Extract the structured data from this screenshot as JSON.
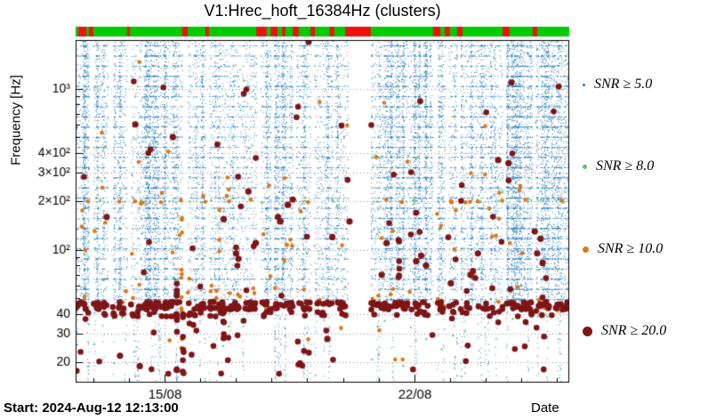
{
  "chart_data": {
    "type": "scatter",
    "title": "V1:Hrec_hoft_16384Hz (clusters)",
    "xlabel": "Date",
    "ylabel": "Frequency [Hz]",
    "start_label": "Start: 2024-Aug-12 12:13:00",
    "x_axis": {
      "start": "2024-Aug-12 12:13:00",
      "span_days": 13.83,
      "minor_first_t": 0.0355,
      "minor_step_t": 0.0723,
      "major_ticks": [
        {
          "label": "15/08",
          "t": 0.1801
        },
        {
          "label": "22/08",
          "t": 0.6862
        }
      ]
    },
    "y_axis": {
      "scale": "log",
      "min": 15,
      "max": 2000,
      "ticks": [
        {
          "f": 20,
          "label": "20"
        },
        {
          "f": 30,
          "label": "30"
        },
        {
          "f": 40,
          "label": "40"
        },
        {
          "f": 100,
          "label": "10²"
        },
        {
          "f": 200,
          "label": "2×10²"
        },
        {
          "f": 300,
          "label": "3×10²"
        },
        {
          "f": 400,
          "label": "4×10²"
        },
        {
          "f": 1000,
          "label": "10³"
        }
      ]
    },
    "legend": [
      {
        "label": "SNR ≥ 5.0",
        "color": "#2d7fb5",
        "marker_px": 3
      },
      {
        "label": "SNR ≥ 8.0",
        "color": "#5fbf61",
        "marker_px": 5
      },
      {
        "label": "SNR ≥ 10.0",
        "color": "#dd7716",
        "marker_px": 7
      },
      {
        "label": "SNR ≥ 20.0",
        "color": "#7e1517",
        "marker_px": 11
      }
    ],
    "status_bar": {
      "ok_color": "#00cc00",
      "bad_color": "#ee1111",
      "red_segments": [
        [
          0.005,
          0.022
        ],
        [
          0.027,
          0.036
        ],
        [
          0.104,
          0.11
        ],
        [
          0.216,
          0.227
        ],
        [
          0.263,
          0.27
        ],
        [
          0.366,
          0.387
        ],
        [
          0.395,
          0.409
        ],
        [
          0.418,
          0.425
        ],
        [
          0.44,
          0.452
        ],
        [
          0.476,
          0.485
        ],
        [
          0.515,
          0.524
        ],
        [
          0.546,
          0.598
        ],
        [
          0.724,
          0.739
        ],
        [
          0.748,
          0.758
        ],
        [
          0.773,
          0.784
        ],
        [
          0.865,
          0.879
        ],
        [
          0.926,
          0.935
        ]
      ]
    },
    "gaps": [
      [
        0.027,
        0.036
      ],
      [
        0.065,
        0.075
      ],
      [
        0.104,
        0.112
      ],
      [
        0.216,
        0.227
      ],
      [
        0.263,
        0.27
      ],
      [
        0.366,
        0.374
      ],
      [
        0.395,
        0.402
      ],
      [
        0.44,
        0.447
      ],
      [
        0.476,
        0.483
      ],
      [
        0.552,
        0.598
      ],
      [
        0.724,
        0.732
      ],
      [
        0.748,
        0.755
      ],
      [
        0.773,
        0.78
      ],
      [
        0.865,
        0.872
      ],
      [
        0.926,
        0.932
      ]
    ],
    "point_generation": {
      "seed": 20240812,
      "blue": {
        "color": "#3182bd",
        "count": 28000,
        "f_min": 46,
        "f_max": 1990,
        "line_fraction": 0.45,
        "line_count": 26,
        "column_fraction": 0.55,
        "column_count": 130,
        "low_band": {
          "count": 900,
          "f_min": 15,
          "f_max": 46,
          "column_count": 70
        }
      },
      "green": {
        "color": "#5fbf61",
        "count": 120,
        "f_min": 18,
        "f_max": 1600,
        "line200_count": 45
      },
      "orange": {
        "color": "#dd7716",
        "count": 50,
        "f_min": 20,
        "f_max": 1500,
        "line200_count": 22,
        "mid_count": 45,
        "band_count": 45,
        "streak": {
          "t": 0.215,
          "count": 12,
          "f_min": 20,
          "f_max": 210
        }
      },
      "darkred": {
        "color": "#7e1517",
        "band_count": 300,
        "band_f": [
          42.5,
          47.5
        ],
        "low_band_count": 70,
        "low_band_f": [
          38.5,
          41.5
        ],
        "scatter_count": 110,
        "f_min": 17,
        "f_max": 1500,
        "streaks": [
          {
            "t": 0.205,
            "count": 10,
            "f_min": 17,
            "f_max": 62
          },
          {
            "t": 0.218,
            "count": 8,
            "f_min": 17,
            "f_max": 47
          },
          {
            "t": 0.3,
            "count": 5,
            "f_min": 25,
            "f_max": 45
          },
          {
            "t": 0.655,
            "count": 6,
            "f_min": 55,
            "f_max": 120
          }
        ]
      }
    },
    "notable_points": [
      {
        "t": 0.121,
        "f": 600
      },
      {
        "t": 0.197,
        "f": 500
      },
      {
        "t": 0.472,
        "f": 1950
      },
      {
        "t": 0.883,
        "f": 1090
      },
      {
        "t": 0.856,
        "f": 360
      },
      {
        "t": 0.877,
        "f": 345
      },
      {
        "t": 0.942,
        "f": 117
      },
      {
        "t": 0.946,
        "f": 83
      },
      {
        "t": 0.43,
        "f": 190
      },
      {
        "t": 0.44,
        "f": 205
      },
      {
        "t": 0.325,
        "f": 95
      },
      {
        "t": 0.33,
        "f": 88
      },
      {
        "t": 0.41,
        "f": 160
      },
      {
        "t": 0.415,
        "f": 150
      },
      {
        "t": 0.69,
        "f": 85
      },
      {
        "t": 0.7,
        "f": 92
      },
      {
        "t": 0.71,
        "f": 80
      },
      {
        "t": 0.62,
        "f": 70
      },
      {
        "t": 0.63,
        "f": 110
      },
      {
        "t": 0.76,
        "f": 62
      },
      {
        "t": 0.8,
        "f": 70
      },
      {
        "t": 0.815,
        "f": 95
      },
      {
        "t": 0.063,
        "f": 160
      },
      {
        "t": 0.09,
        "f": 22
      },
      {
        "t": 0.13,
        "f": 19
      },
      {
        "t": 0.205,
        "f": 18
      },
      {
        "t": 0.51,
        "f": 28
      },
      {
        "t": 0.555,
        "f": 150
      },
      {
        "t": 0.3,
        "f": 155
      },
      {
        "t": 0.35,
        "f": 230
      },
      {
        "t": 0.365,
        "f": 110
      },
      {
        "t": 0.52,
        "f": 120
      },
      {
        "t": 0.935,
        "f": 95
      },
      {
        "t": 0.93,
        "f": 130
      }
    ]
  }
}
